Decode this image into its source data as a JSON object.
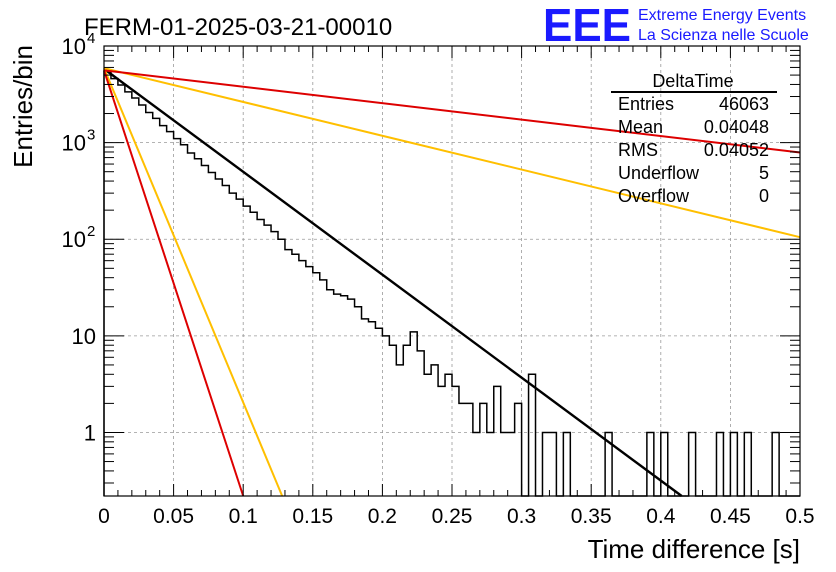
{
  "chart_data": {
    "type": "histogram",
    "title": "FERM-01-2025-03-21-00010",
    "xlabel": "Time difference [s]",
    "ylabel": "Entries/bin",
    "xlim": [
      0,
      0.5
    ],
    "ylim": [
      0.22,
      10000
    ],
    "y_scale": "log",
    "grid": true,
    "x_ticks": [
      0,
      0.05,
      0.1,
      0.15,
      0.2,
      0.25,
      0.3,
      0.35,
      0.4,
      0.45,
      0.5
    ],
    "x_tick_labels": [
      "0",
      "0.05",
      "0.1",
      "0.15",
      "0.2",
      "0.25",
      "0.3",
      "0.35",
      "0.4",
      "0.45",
      "0.5"
    ],
    "y_ticks": [
      1,
      10,
      100,
      1000,
      10000
    ],
    "y_tick_labels": [
      {
        "base": "1",
        "exp": ""
      },
      {
        "base": "10",
        "exp": ""
      },
      {
        "base": "10",
        "exp": "2"
      },
      {
        "base": "10",
        "exp": "3"
      },
      {
        "base": "10",
        "exp": "4"
      }
    ],
    "bin_width": 0.005,
    "histogram": {
      "color": "#000000",
      "values": [
        5500,
        4600,
        3950,
        3350,
        2900,
        2450,
        2050,
        1780,
        1500,
        1300,
        1100,
        950,
        780,
        680,
        580,
        490,
        420,
        360,
        300,
        260,
        220,
        190,
        160,
        140,
        120,
        100,
        78,
        70,
        60,
        52,
        45,
        38,
        30,
        27,
        26,
        24,
        20,
        15,
        14,
        12,
        10,
        8,
        5,
        8,
        11,
        7,
        4,
        5,
        3,
        4,
        3,
        2,
        2,
        1,
        2,
        1,
        3,
        1,
        1,
        2,
        0,
        4,
        0,
        1,
        1,
        0,
        1,
        0,
        0,
        0,
        0,
        0,
        1,
        0,
        0,
        0,
        0,
        0,
        1,
        0,
        1,
        0,
        0,
        0,
        1,
        0,
        0,
        0,
        1,
        0,
        1,
        0,
        1,
        0,
        0,
        0,
        1,
        0,
        0,
        0
      ]
    },
    "fits": [
      {
        "color": "#000000",
        "x": [
          0,
          0.415
        ],
        "y": [
          5800,
          0.22
        ]
      },
      {
        "color": "#ffbf00",
        "x": [
          0,
          0.5
        ],
        "y": [
          5900,
          105
        ]
      },
      {
        "color": "#ffbf00",
        "x": [
          0,
          0.128
        ],
        "y": [
          5900,
          0.22
        ]
      },
      {
        "color": "#dd0000",
        "x": [
          0,
          0.5
        ],
        "y": [
          5600,
          790
        ]
      },
      {
        "color": "#dd0000",
        "x": [
          0,
          0.1
        ],
        "y": [
          5600,
          0.22
        ]
      }
    ],
    "stats": {
      "title": "DeltaTime",
      "rows": [
        {
          "label": "Entries",
          "value": "46063"
        },
        {
          "label": "Mean",
          "value": "0.04048"
        },
        {
          "label": "RMS",
          "value": "0.04052"
        },
        {
          "label": "Underflow",
          "value": "5"
        },
        {
          "label": "Overflow",
          "value": "0"
        }
      ]
    },
    "logo": {
      "text": "EEE",
      "line1": "Extreme Energy Events",
      "line2": "La Scienza nelle Scuole",
      "color": "#1a1aff"
    }
  }
}
